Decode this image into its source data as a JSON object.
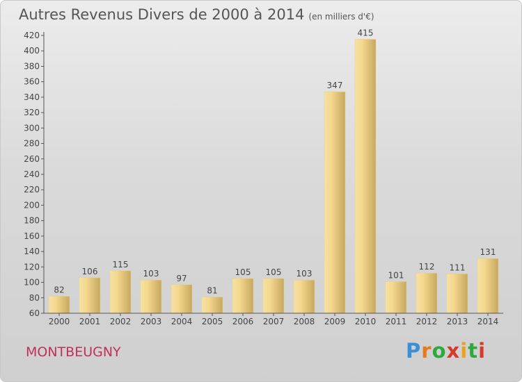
{
  "title": "Autres Revenus Divers de 2000 à 2014",
  "subtitle": "(en milliers d'€)",
  "town": "MONTBEUGNY",
  "logo": {
    "text": "Proxiti"
  },
  "colors": {
    "bar_light": "#f8e3a0",
    "bar_dark": "#c9aa5e",
    "axis": "#555555",
    "town": "#c0305a"
  },
  "chart_data": {
    "type": "bar",
    "title": "Autres Revenus Divers de 2000 à 2014",
    "subtitle": "(en milliers d'€)",
    "xlabel": "",
    "ylabel": "",
    "categories": [
      "2000",
      "2001",
      "2002",
      "2003",
      "2004",
      "2005",
      "2006",
      "2007",
      "2008",
      "2009",
      "2010",
      "2011",
      "2012",
      "2013",
      "2014"
    ],
    "values": [
      82,
      106,
      115,
      103,
      97,
      81,
      105,
      105,
      103,
      347,
      415,
      101,
      112,
      111,
      131
    ],
    "ylim": [
      60,
      420
    ],
    "yticks": [
      60,
      80,
      100,
      120,
      140,
      160,
      180,
      200,
      220,
      240,
      260,
      280,
      300,
      320,
      340,
      360,
      380,
      400,
      420
    ],
    "grid": false,
    "legend": "none"
  }
}
